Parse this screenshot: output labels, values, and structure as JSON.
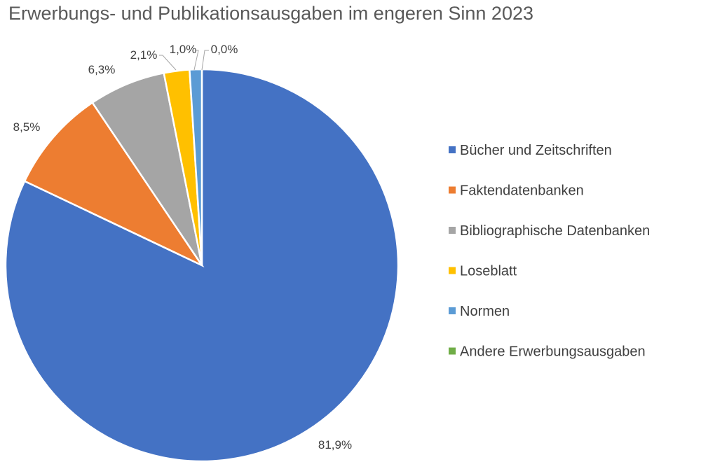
{
  "chart_data": {
    "type": "pie",
    "title": "Erwerbungs- und Publikationsausgaben im engeren Sinn 2023",
    "legend_position": "right",
    "start_angle_deg": 0,
    "direction": "clockwise",
    "series": [
      {
        "name": "Bücher und Zeitschriften",
        "value": 81.9,
        "label": "81,9%",
        "color": "#4472C4"
      },
      {
        "name": "Faktendatenbanken",
        "value": 8.5,
        "label": "8,5%",
        "color": "#ED7D31"
      },
      {
        "name": "Bibliographische Datenbanken",
        "value": 6.3,
        "label": "6,3%",
        "color": "#A5A5A5"
      },
      {
        "name": "Loseblatt",
        "value": 2.1,
        "label": "2,1%",
        "color": "#FFC000"
      },
      {
        "name": "Normen",
        "value": 1.0,
        "label": "1,0%",
        "color": "#5B9BD5"
      },
      {
        "name": "Andere Erwerbungsausgaben",
        "value": 0.0,
        "label": "0,0%",
        "color": "#70AD47"
      }
    ]
  }
}
